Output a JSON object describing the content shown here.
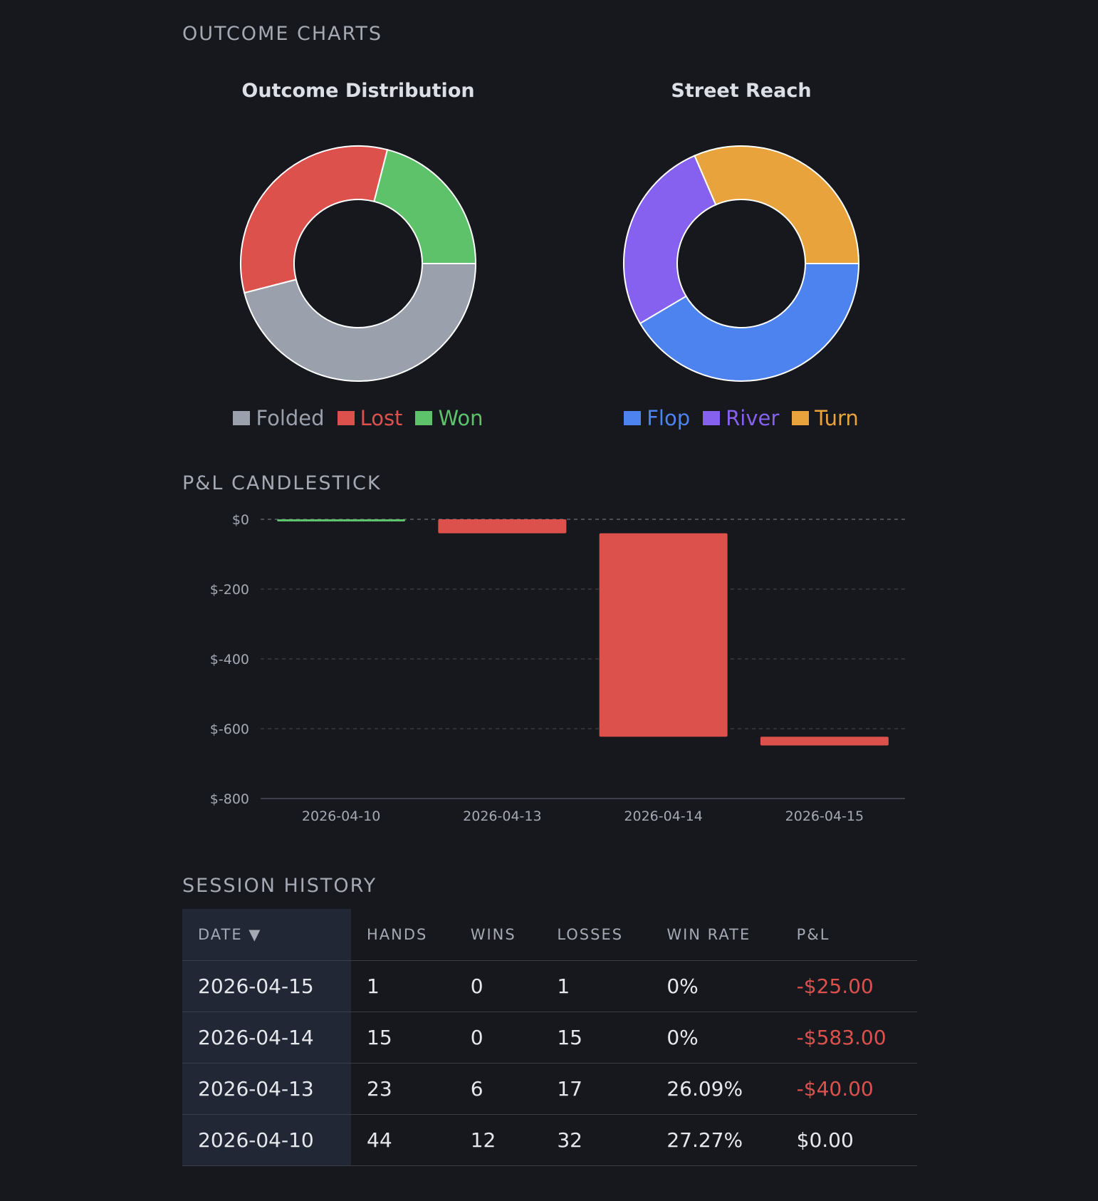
{
  "sections": {
    "outcome": "OUTCOME CHARTS",
    "candlestick": "P&L CANDLESTICK",
    "history": "SESSION HISTORY"
  },
  "colors": {
    "folded": "#9aa1ad",
    "lost": "#dd514d",
    "won": "#5dc26a",
    "flop": "#4d83ee",
    "river": "#8660ee",
    "turn": "#e8a33c",
    "positive": "#5dc26a",
    "negative": "#dd514d"
  },
  "chart_data": [
    {
      "type": "pie",
      "title": "Outcome Distribution",
      "labels": [
        "Folded",
        "Lost",
        "Won"
      ],
      "values": [
        46,
        33,
        21
      ],
      "colors": [
        "#9aa1ad",
        "#dd514d",
        "#5dc26a"
      ],
      "legend": "bottom"
    },
    {
      "type": "pie",
      "title": "Street Reach",
      "labels": [
        "Flop",
        "River",
        "Turn"
      ],
      "values": [
        41.5,
        27,
        31.5
      ],
      "colors": [
        "#4d83ee",
        "#8660ee",
        "#e8a33c"
      ],
      "legend": "bottom"
    },
    {
      "type": "bar",
      "subtype": "candlestick",
      "categories": [
        "2026-04-10",
        "2026-04-13",
        "2026-04-14",
        "2026-04-15"
      ],
      "series": [
        {
          "open": [
            0,
            0,
            -40,
            -623
          ],
          "close": [
            0,
            -40,
            -623,
            -648
          ]
        }
      ],
      "ylim": [
        -800,
        0
      ],
      "yticks": [
        0,
        -200,
        -400,
        -600,
        -800
      ],
      "ytick_labels": [
        "$0",
        "$-200",
        "$-400",
        "$-600",
        "$-800"
      ],
      "grid": true
    }
  ],
  "table": {
    "headers": [
      "DATE ▼",
      "HANDS",
      "WINS",
      "LOSSES",
      "WIN RATE",
      "P&L"
    ],
    "rows": [
      [
        "2026-04-15",
        "1",
        "0",
        "1",
        "0%",
        "-$25.00"
      ],
      [
        "2026-04-14",
        "15",
        "0",
        "15",
        "0%",
        "-$583.00"
      ],
      [
        "2026-04-13",
        "23",
        "6",
        "17",
        "26.09%",
        "-$40.00"
      ],
      [
        "2026-04-10",
        "44",
        "12",
        "32",
        "27.27%",
        "$0.00"
      ]
    ]
  }
}
